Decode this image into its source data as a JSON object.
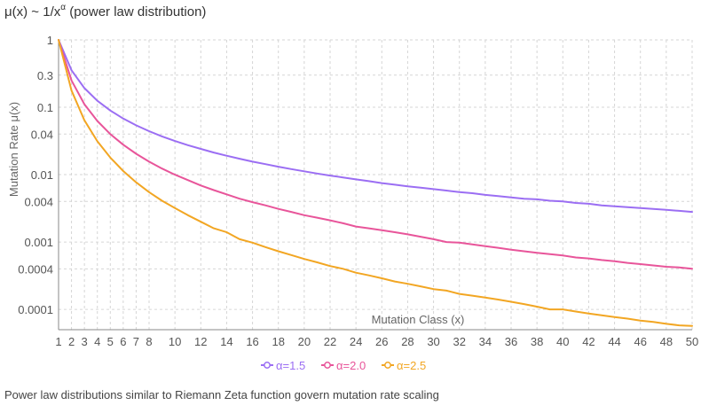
{
  "title_prefix": "μ(x) ~ 1/x",
  "title_exponent": "α",
  "title_suffix": " (power law distribution)",
  "caption": "Power law distributions similar to Riemann Zeta function govern mutation rate scaling",
  "colors": {
    "grid": "#d6d6d6",
    "axis": "#888888",
    "tick_text": "#555555",
    "label_text": "#666666"
  },
  "chart_data": {
    "type": "line",
    "title": "μ(x) ~ 1/xα (power law distribution)",
    "xlabel": "Mutation Class (x)",
    "ylabel": "Mutation Rate μ(x)",
    "xlim": [
      1,
      50
    ],
    "ylim": [
      5e-05,
      1
    ],
    "yscale": "log",
    "grid": true,
    "legend_position": "bottom",
    "x_ticks": [
      1,
      2,
      3,
      4,
      5,
      6,
      7,
      8,
      10,
      12,
      14,
      16,
      18,
      20,
      22,
      24,
      26,
      28,
      30,
      32,
      34,
      36,
      38,
      40,
      42,
      44,
      46,
      48,
      50
    ],
    "y_ticks": [
      1,
      0.3,
      0.1,
      0.04,
      0.01,
      0.004,
      0.001,
      0.0004,
      0.0001
    ],
    "y_tick_labels": [
      "1",
      "0.3",
      "0.1",
      "0.04",
      "0.01",
      "0.004",
      "0.001",
      "0.0004",
      "0.0001"
    ],
    "x": [
      1,
      2,
      3,
      4,
      5,
      6,
      7,
      8,
      9,
      10,
      11,
      12,
      13,
      14,
      15,
      16,
      17,
      18,
      19,
      20,
      21,
      22,
      23,
      24,
      25,
      26,
      27,
      28,
      29,
      30,
      31,
      32,
      33,
      34,
      35,
      36,
      37,
      38,
      39,
      40,
      41,
      42,
      43,
      44,
      45,
      46,
      47,
      48,
      49,
      50
    ],
    "series": [
      {
        "name": "α=1.5",
        "color": "#9b6ef3",
        "values": [
          1,
          0.3536,
          0.1925,
          0.125,
          0.0894,
          0.068,
          0.054,
          0.0442,
          0.037,
          0.0316,
          0.0274,
          0.0241,
          0.0213,
          0.0191,
          0.0172,
          0.0156,
          0.0143,
          0.0131,
          0.0121,
          0.0112,
          0.0104,
          0.0097,
          0.0091,
          0.0085,
          0.008,
          0.0075,
          0.0071,
          0.0067,
          0.0064,
          0.0061,
          0.0058,
          0.0055,
          0.0053,
          0.005,
          0.0048,
          0.0046,
          0.0044,
          0.0043,
          0.0041,
          0.004,
          0.0038,
          0.0037,
          0.0035,
          0.0034,
          0.0033,
          0.0032,
          0.0031,
          0.003,
          0.0029,
          0.0028
        ]
      },
      {
        "name": "α=2.0",
        "color": "#e8559a",
        "values": [
          1,
          0.25,
          0.1111,
          0.0625,
          0.04,
          0.0278,
          0.0204,
          0.0156,
          0.0123,
          0.01,
          0.0083,
          0.0069,
          0.0059,
          0.0051,
          0.0044,
          0.0039,
          0.0035,
          0.0031,
          0.0028,
          0.0025,
          0.0023,
          0.0021,
          0.0019,
          0.0017,
          0.0016,
          0.0015,
          0.0014,
          0.0013,
          0.0012,
          0.0011,
          0.001,
          0.00098,
          0.00092,
          0.00087,
          0.00082,
          0.00077,
          0.00073,
          0.00069,
          0.00066,
          0.00063,
          0.00059,
          0.00057,
          0.00054,
          0.00052,
          0.00049,
          0.00047,
          0.00045,
          0.00043,
          0.00042,
          0.0004
        ]
      },
      {
        "name": "α=2.5",
        "color": "#f2a623",
        "values": [
          1,
          0.1768,
          0.0642,
          0.0313,
          0.0179,
          0.0113,
          0.0077,
          0.0055,
          0.0041,
          0.0032,
          0.0025,
          0.002,
          0.0016,
          0.0014,
          0.0011,
          0.00098,
          0.00084,
          0.00073,
          0.00064,
          0.00056,
          0.0005,
          0.00044,
          0.0004,
          0.00035,
          0.00032,
          0.00029,
          0.00026,
          0.00024,
          0.00022,
          0.0002,
          0.00019,
          0.00017,
          0.00016,
          0.00015,
          0.00014,
          0.00013,
          0.00012,
          0.00011,
          0.0001,
          0.0001,
          9.3e-05,
          8.7e-05,
          8.2e-05,
          7.7e-05,
          7.3e-05,
          6.8e-05,
          6.5e-05,
          6.1e-05,
          5.8e-05,
          5.7e-05
        ]
      }
    ]
  }
}
